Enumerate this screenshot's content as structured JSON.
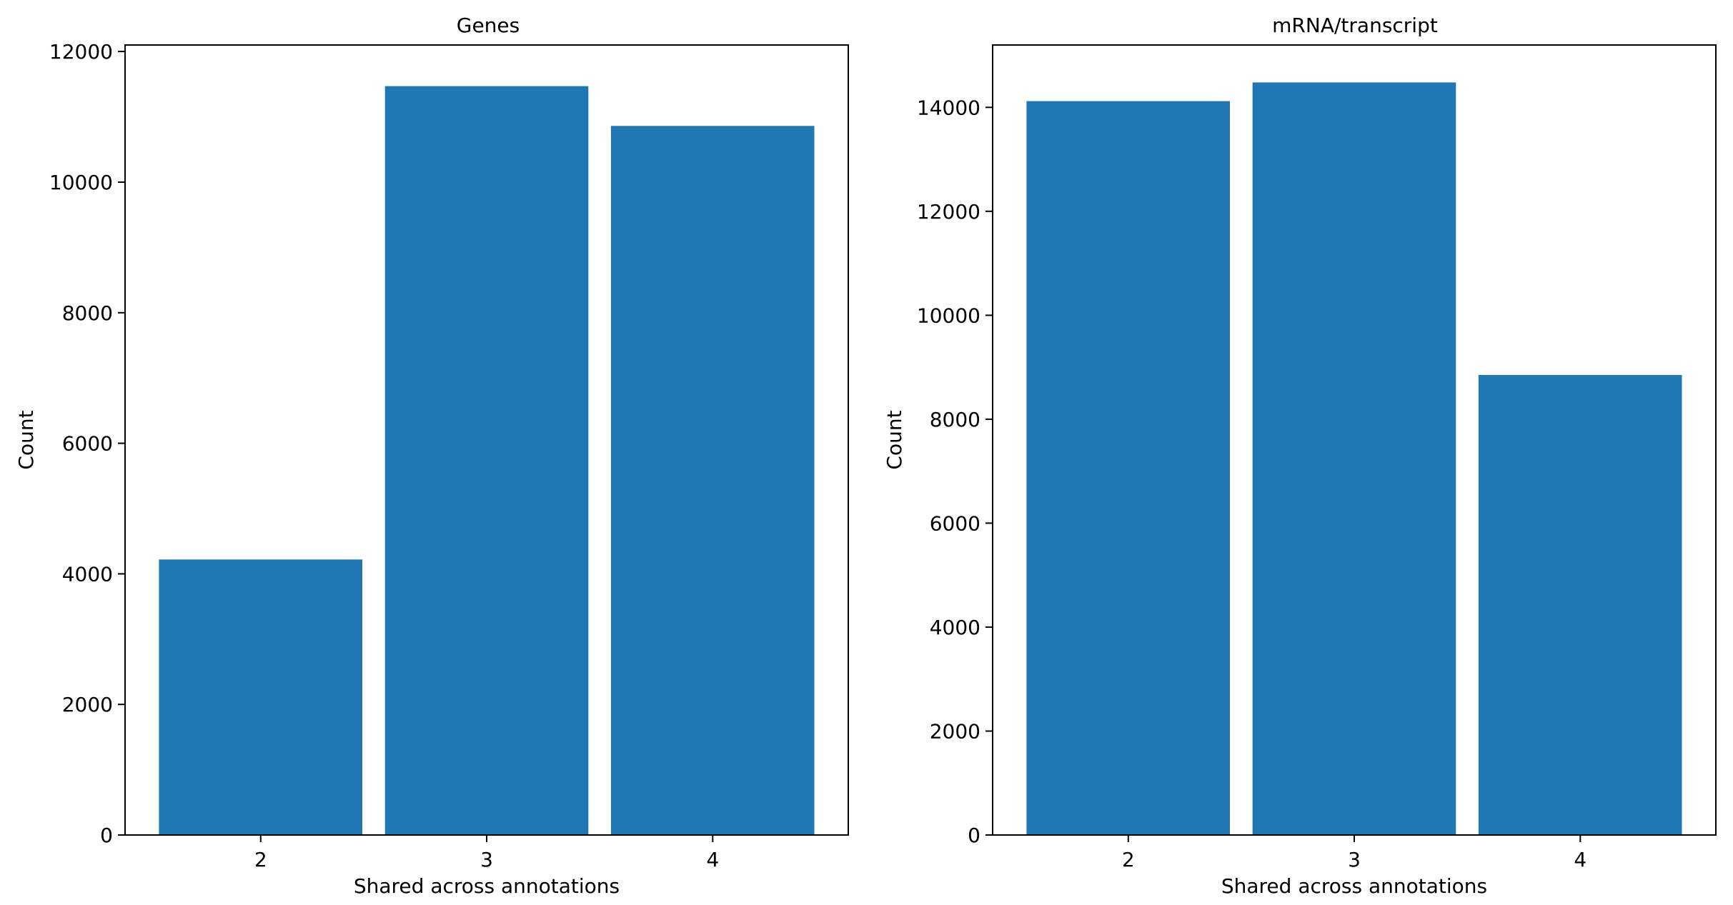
{
  "chart_data": [
    {
      "type": "bar",
      "title": "Genes",
      "xlabel": "Shared across annotations",
      "ylabel": "Count",
      "categories": [
        "2",
        "3",
        "4"
      ],
      "values": [
        4220,
        11470,
        10860
      ],
      "ylim": [
        0,
        12100
      ],
      "yticks": [
        0,
        2000,
        4000,
        6000,
        8000,
        10000,
        12000
      ],
      "ytick_labels": [
        "0",
        "2000",
        "4000",
        "6000",
        "8000",
        "10000",
        "12000"
      ],
      "grid": false,
      "color": "#1f77b4"
    },
    {
      "type": "bar",
      "title": "mRNA/transcript",
      "xlabel": "Shared across annotations",
      "ylabel": "Count",
      "categories": [
        "2",
        "3",
        "4"
      ],
      "values": [
        14120,
        14480,
        8850
      ],
      "ylim": [
        0,
        15200
      ],
      "yticks": [
        0,
        2000,
        4000,
        6000,
        8000,
        10000,
        12000,
        14000
      ],
      "ytick_labels": [
        "0",
        "2000",
        "4000",
        "6000",
        "8000",
        "10000",
        "12000",
        "14000"
      ],
      "grid": false,
      "color": "#1f77b4"
    }
  ]
}
